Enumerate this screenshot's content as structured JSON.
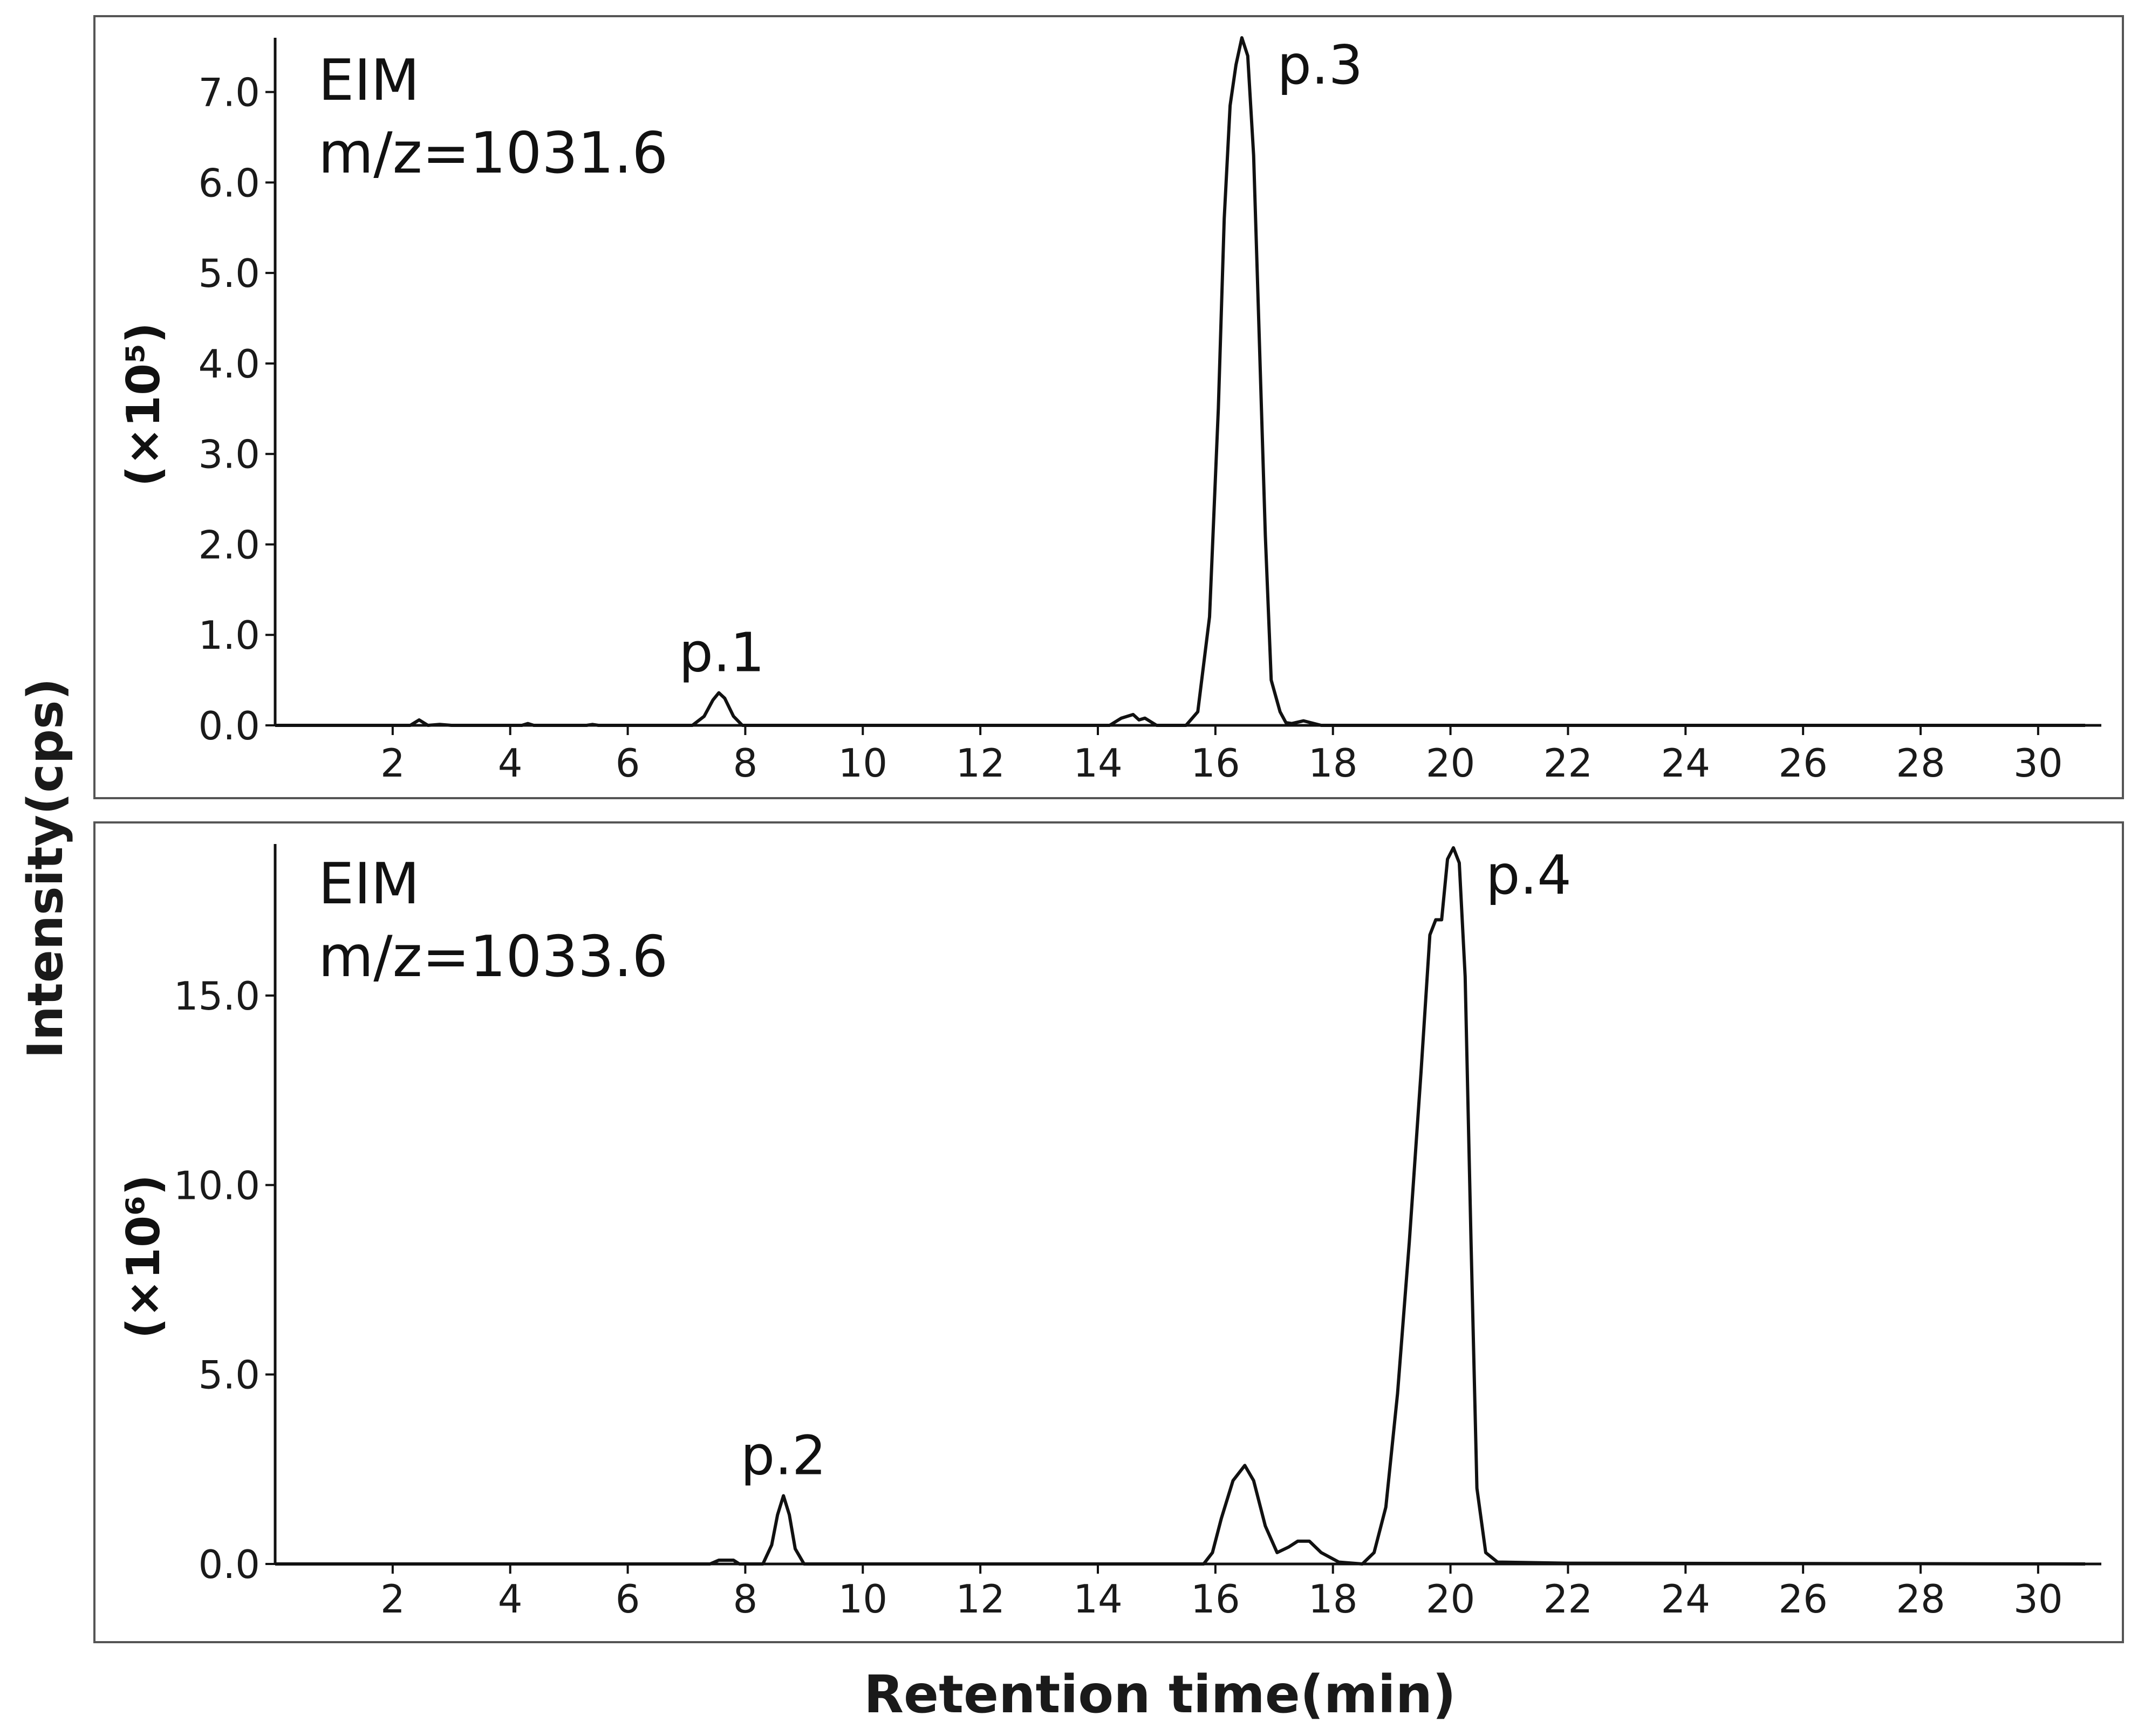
{
  "figure": {
    "ylabel": "Intensity(cps)",
    "xlabel": "Retention time(min)"
  },
  "chart_data": [
    {
      "type": "line",
      "title": "EIM",
      "subtitle": "m/z=1031.6",
      "scale_label": "(×10⁵)",
      "xlabel": "Retention time(min)",
      "ylabel": "Intensity(cps)",
      "xlim": [
        0,
        30.8
      ],
      "ylim": [
        0,
        7.6
      ],
      "x_ticks": [
        2,
        4,
        6,
        8,
        10,
        12,
        14,
        16,
        18,
        20,
        22,
        24,
        26,
        28,
        30
      ],
      "y_ticks": [
        0.0,
        1.0,
        2.0,
        3.0,
        4.0,
        5.0,
        6.0,
        7.0
      ],
      "y_tick_labels": [
        "0.0",
        "1.0",
        "2.0",
        "3.0",
        "4.0",
        "5.0",
        "6.0",
        "7.0"
      ],
      "grid": false,
      "series": [
        {
          "points": [
            [
              0,
              0
            ],
            [
              2.3,
              0
            ],
            [
              2.45,
              0.06
            ],
            [
              2.6,
              0
            ],
            [
              2.8,
              0.01
            ],
            [
              3,
              0
            ],
            [
              4.2,
              0
            ],
            [
              4.3,
              0.02
            ],
            [
              4.4,
              0
            ],
            [
              5.3,
              0
            ],
            [
              5.4,
              0.01
            ],
            [
              5.5,
              0
            ],
            [
              7.1,
              0
            ],
            [
              7.3,
              0.1
            ],
            [
              7.45,
              0.28
            ],
            [
              7.55,
              0.36
            ],
            [
              7.65,
              0.3
            ],
            [
              7.8,
              0.1
            ],
            [
              7.95,
              0
            ],
            [
              14.2,
              0
            ],
            [
              14.4,
              0.08
            ],
            [
              14.6,
              0.12
            ],
            [
              14.7,
              0.06
            ],
            [
              14.8,
              0.08
            ],
            [
              15.0,
              0
            ],
            [
              15.5,
              0
            ],
            [
              15.7,
              0.15
            ],
            [
              15.9,
              1.2
            ],
            [
              16.05,
              3.5
            ],
            [
              16.15,
              5.6
            ],
            [
              16.25,
              6.85
            ],
            [
              16.35,
              7.3
            ],
            [
              16.45,
              7.6
            ],
            [
              16.55,
              7.4
            ],
            [
              16.65,
              6.3
            ],
            [
              16.75,
              4.2
            ],
            [
              16.85,
              2.1
            ],
            [
              16.95,
              0.5
            ],
            [
              17.1,
              0.15
            ],
            [
              17.2,
              0.03
            ],
            [
              17.3,
              0.02
            ],
            [
              17.5,
              0.05
            ],
            [
              17.8,
              0
            ],
            [
              30.8,
              0
            ]
          ]
        }
      ],
      "annotations": [
        {
          "text": "p.1",
          "x": 7.6,
          "y": 0.36
        },
        {
          "text": "p.3",
          "x": 16.5,
          "y": 7.6
        }
      ]
    },
    {
      "type": "line",
      "title": "EIM",
      "subtitle": "m/z=1033.6",
      "scale_label": "(×10⁶)",
      "xlabel": "Retention time(min)",
      "ylabel": "Intensity(cps)",
      "xlim": [
        0,
        30.8
      ],
      "ylim": [
        0,
        19
      ],
      "x_ticks": [
        2,
        4,
        6,
        8,
        10,
        12,
        14,
        16,
        18,
        20,
        22,
        24,
        26,
        28,
        30
      ],
      "y_ticks": [
        0.0,
        5.0,
        10.0,
        15.0
      ],
      "y_tick_labels": [
        "0.0",
        "5.0",
        "10.0",
        "15.0"
      ],
      "grid": false,
      "series": [
        {
          "points": [
            [
              0,
              0
            ],
            [
              7.4,
              0
            ],
            [
              7.55,
              0.1
            ],
            [
              7.8,
              0.1
            ],
            [
              7.9,
              0
            ],
            [
              8.3,
              0
            ],
            [
              8.45,
              0.5
            ],
            [
              8.55,
              1.3
            ],
            [
              8.65,
              1.8
            ],
            [
              8.75,
              1.3
            ],
            [
              8.85,
              0.4
            ],
            [
              9.0,
              0
            ],
            [
              15.8,
              0
            ],
            [
              15.95,
              0.3
            ],
            [
              16.1,
              1.2
            ],
            [
              16.3,
              2.2
            ],
            [
              16.5,
              2.6
            ],
            [
              16.65,
              2.2
            ],
            [
              16.85,
              1.0
            ],
            [
              17.05,
              0.3
            ],
            [
              17.25,
              0.45
            ],
            [
              17.4,
              0.6
            ],
            [
              17.6,
              0.6
            ],
            [
              17.8,
              0.3
            ],
            [
              18.1,
              0.05
            ],
            [
              18.5,
              0
            ],
            [
              18.7,
              0.3
            ],
            [
              18.9,
              1.5
            ],
            [
              19.1,
              4.5
            ],
            [
              19.3,
              8.5
            ],
            [
              19.5,
              13.0
            ],
            [
              19.65,
              16.6
            ],
            [
              19.75,
              17.0
            ],
            [
              19.85,
              17.0
            ],
            [
              19.95,
              18.6
            ],
            [
              20.05,
              18.9
            ],
            [
              20.15,
              18.5
            ],
            [
              20.25,
              15.5
            ],
            [
              20.35,
              8.5
            ],
            [
              20.45,
              2.0
            ],
            [
              20.6,
              0.3
            ],
            [
              20.8,
              0.05
            ],
            [
              22,
              0.02
            ],
            [
              30.8,
              0
            ]
          ]
        }
      ],
      "annotations": [
        {
          "text": "p.2",
          "x": 8.65,
          "y": 1.8
        },
        {
          "text": "p.4",
          "x": 20.05,
          "y": 18.9
        }
      ]
    }
  ]
}
